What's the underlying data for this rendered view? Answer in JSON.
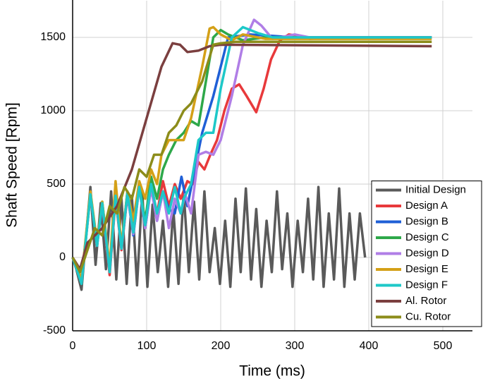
{
  "chart_data": {
    "type": "line",
    "x_label": "Time (ms)",
    "y_label": "Shaft Speed [Rpm]",
    "xlim": [
      0,
      540
    ],
    "ylim": [
      -500,
      1750
    ],
    "xticks": [
      0,
      100,
      200,
      300,
      400,
      500
    ],
    "yticks": [
      -500,
      0,
      500,
      1000,
      1500
    ],
    "grid": true,
    "legend": "lower right",
    "series": [
      {
        "name": "Initial Design",
        "color": "#5a5a5a",
        "x": [
          0,
          5,
          12,
          24,
          31,
          38,
          45,
          52,
          59,
          66,
          73,
          80,
          87,
          94,
          101,
          108,
          115,
          122,
          129,
          136,
          143,
          150,
          157,
          164,
          171,
          178,
          185,
          192,
          199,
          206,
          213,
          220,
          227,
          234,
          241,
          248,
          255,
          262,
          269,
          276,
          283,
          290,
          297,
          304,
          311,
          318,
          325,
          332,
          339,
          346,
          353,
          360,
          367,
          374,
          381,
          388,
          395
        ],
        "values": [
          0,
          -80,
          -220,
          480,
          -50,
          370,
          -80,
          450,
          -150,
          400,
          -180,
          420,
          -190,
          450,
          -200,
          360,
          -100,
          250,
          -200,
          330,
          -180,
          450,
          -100,
          380,
          -150,
          450,
          -100,
          200,
          -180,
          250,
          -200,
          400,
          -100,
          470,
          -150,
          330,
          -200,
          250,
          -100,
          450,
          -80,
          300,
          -200,
          250,
          -100,
          400,
          -150,
          480,
          -200,
          300,
          -150,
          470,
          -200,
          300,
          -150,
          300,
          0
        ]
      },
      {
        "name": "Design A",
        "color": "#e8393b",
        "x": [
          0,
          12,
          24,
          33,
          40,
          50,
          58,
          66,
          74,
          82,
          90,
          98,
          106,
          114,
          122,
          130,
          138,
          146,
          155,
          162,
          170,
          178,
          186,
          195,
          205,
          215,
          225,
          235,
          248,
          258,
          268,
          280,
          292,
          305,
          320,
          350,
          400,
          485
        ],
        "values": [
          0,
          -150,
          420,
          100,
          350,
          -120,
          400,
          50,
          420,
          200,
          500,
          200,
          500,
          300,
          520,
          350,
          500,
          400,
          520,
          500,
          650,
          600,
          700,
          800,
          1000,
          1150,
          1180,
          1100,
          990,
          1150,
          1350,
          1480,
          1520,
          1510,
          1490,
          1500,
          1500,
          1500
        ]
      },
      {
        "name": "Design B",
        "color": "#1f5fd6",
        "x": [
          0,
          12,
          24,
          33,
          40,
          50,
          58,
          66,
          74,
          82,
          90,
          98,
          106,
          114,
          122,
          130,
          138,
          147,
          155,
          165,
          175,
          190,
          210,
          240,
          300,
          485
        ],
        "values": [
          0,
          -160,
          430,
          80,
          360,
          -100,
          420,
          60,
          430,
          150,
          480,
          200,
          480,
          250,
          450,
          330,
          300,
          550,
          350,
          600,
          850,
          1100,
          1500,
          1520,
          1500,
          1500
        ]
      },
      {
        "name": "Design C",
        "color": "#2ea84a",
        "x": [
          0,
          12,
          24,
          33,
          40,
          50,
          58,
          66,
          74,
          82,
          90,
          98,
          106,
          114,
          122,
          130,
          140,
          150,
          160,
          170,
          180,
          190,
          200,
          210,
          230,
          260,
          485
        ],
        "values": [
          0,
          -170,
          440,
          90,
          380,
          -90,
          430,
          70,
          450,
          180,
          500,
          250,
          550,
          400,
          600,
          700,
          800,
          850,
          930,
          900,
          1200,
          1500,
          1550,
          1520,
          1480,
          1500,
          1500
        ]
      },
      {
        "name": "Design D",
        "color": "#b07ee6",
        "x": [
          0,
          12,
          24,
          33,
          40,
          50,
          58,
          66,
          74,
          82,
          90,
          98,
          106,
          114,
          122,
          130,
          138,
          146,
          152,
          160,
          170,
          180,
          190,
          200,
          215,
          230,
          245,
          255,
          270,
          290,
          300,
          320,
          485
        ],
        "values": [
          0,
          -170,
          430,
          90,
          370,
          -100,
          420,
          60,
          430,
          160,
          480,
          200,
          470,
          250,
          450,
          200,
          400,
          300,
          430,
          300,
          700,
          720,
          700,
          800,
          1100,
          1450,
          1620,
          1580,
          1490,
          1510,
          1520,
          1500,
          1500
        ]
      },
      {
        "name": "Design E",
        "color": "#d4a017",
        "x": [
          0,
          12,
          24,
          33,
          40,
          50,
          58,
          66,
          74,
          82,
          90,
          98,
          106,
          114,
          120,
          130,
          140,
          150,
          160,
          175,
          185,
          190,
          200,
          215,
          230,
          260,
          485
        ],
        "values": [
          0,
          -150,
          450,
          100,
          380,
          -60,
          520,
          80,
          450,
          250,
          520,
          400,
          600,
          500,
          700,
          800,
          800,
          800,
          950,
          1300,
          1560,
          1570,
          1520,
          1480,
          1520,
          1490,
          1490
        ]
      },
      {
        "name": "Design F",
        "color": "#1ec8c8",
        "x": [
          0,
          12,
          24,
          33,
          40,
          50,
          58,
          66,
          74,
          82,
          90,
          98,
          106,
          114,
          122,
          130,
          138,
          146,
          150,
          160,
          170,
          180,
          190,
          200,
          215,
          230,
          250,
          270,
          485
        ],
        "values": [
          0,
          -180,
          430,
          80,
          370,
          -100,
          420,
          60,
          440,
          170,
          480,
          220,
          500,
          300,
          450,
          300,
          480,
          300,
          400,
          500,
          800,
          850,
          850,
          1150,
          1500,
          1570,
          1530,
          1500,
          1500
        ]
      },
      {
        "name": "Al. Rotor",
        "color": "#7b3f3f",
        "x": [
          0,
          10,
          20,
          40,
          60,
          80,
          100,
          120,
          135,
          145,
          155,
          170,
          185,
          200,
          485
        ],
        "values": [
          0,
          -80,
          100,
          200,
          350,
          600,
          950,
          1300,
          1460,
          1450,
          1400,
          1410,
          1440,
          1450,
          1440
        ]
      },
      {
        "name": "Cu. Rotor",
        "color": "#8c8c1a",
        "x": [
          0,
          10,
          20,
          30,
          40,
          50,
          60,
          70,
          80,
          90,
          100,
          110,
          120,
          130,
          140,
          150,
          160,
          175,
          190,
          200,
          220,
          485
        ],
        "values": [
          0,
          -100,
          50,
          200,
          150,
          350,
          300,
          480,
          400,
          600,
          550,
          700,
          700,
          850,
          900,
          1000,
          1050,
          1200,
          1450,
          1460,
          1470,
          1470
        ]
      }
    ]
  }
}
